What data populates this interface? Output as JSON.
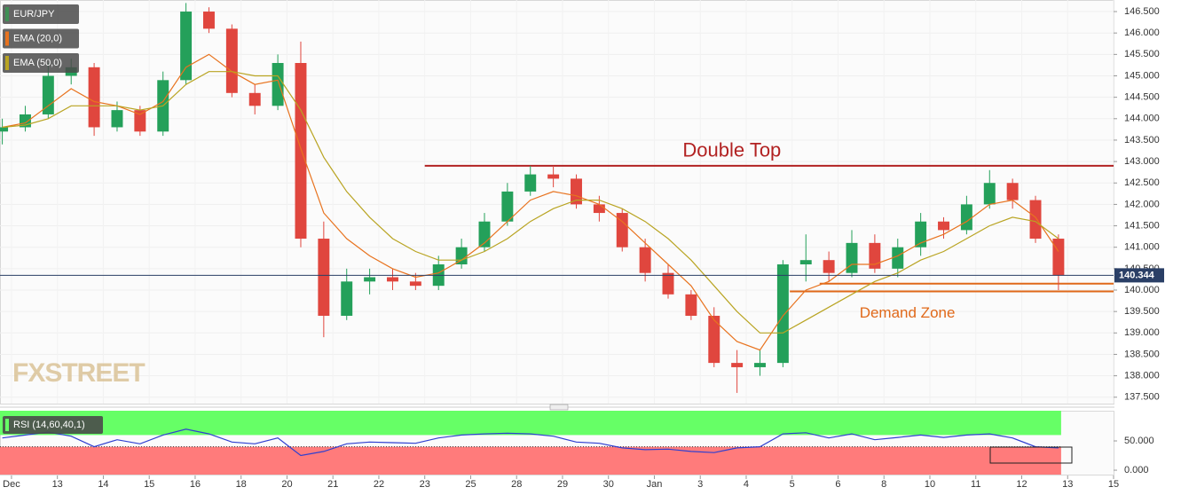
{
  "chart_data": [
    {
      "type": "candlestick",
      "watermark": "FXSTREET",
      "x": [
        -0.2,
        0.3,
        0.8,
        1.3,
        1.8,
        2.3,
        2.8,
        3.3,
        3.8,
        4.3,
        4.8,
        5.3,
        5.8,
        6.3,
        6.8,
        7.3,
        7.8,
        8.3,
        8.8,
        9.3,
        9.8,
        10.3,
        10.8,
        11.3,
        11.8,
        12.3,
        12.8,
        13.3,
        13.8,
        14.3,
        14.8,
        15.3,
        15.8,
        16.3,
        16.8,
        17.3,
        17.8,
        18.3,
        18.8,
        19.3,
        19.8,
        20.3,
        20.8,
        21.3,
        21.8,
        22.3,
        22.8
      ],
      "series": [
        {
          "name": "EUR/JPY",
          "color": "#3f8f55",
          "up_color": "#24a05a",
          "down_color": "#e0463e",
          "open": [
            143.7,
            143.8,
            144.1,
            145.0,
            145.2,
            143.8,
            144.2,
            143.7,
            144.9,
            146.5,
            146.1,
            144.6,
            144.3,
            145.3,
            141.2,
            139.4,
            140.2,
            140.3,
            140.2,
            140.1,
            140.6,
            141.0,
            141.6,
            142.3,
            142.7,
            142.6,
            142.0,
            141.8,
            141.0,
            140.4,
            139.9,
            139.4,
            138.3,
            138.2,
            138.3,
            140.6,
            140.7,
            140.4,
            141.1,
            140.5,
            141.0,
            141.6,
            141.4,
            142.0,
            142.5,
            142.1,
            141.2
          ],
          "high": [
            144.0,
            144.3,
            145.3,
            145.4,
            145.3,
            144.4,
            144.3,
            145.1,
            146.7,
            146.6,
            146.2,
            144.8,
            145.5,
            145.8,
            141.6,
            140.5,
            140.5,
            140.5,
            140.4,
            140.8,
            141.2,
            141.8,
            142.5,
            142.9,
            142.9,
            142.7,
            142.2,
            141.9,
            141.2,
            140.6,
            140.0,
            139.6,
            138.6,
            138.6,
            140.7,
            141.3,
            140.9,
            141.4,
            141.3,
            141.2,
            141.8,
            141.7,
            142.2,
            142.8,
            142.6,
            142.2,
            141.3
          ],
          "low": [
            143.4,
            143.7,
            144.0,
            144.8,
            143.6,
            143.7,
            143.6,
            143.6,
            144.8,
            146.0,
            144.5,
            144.1,
            144.2,
            141.0,
            138.9,
            139.3,
            139.9,
            140.0,
            140.0,
            140.0,
            140.5,
            140.9,
            141.5,
            142.2,
            142.4,
            141.9,
            141.6,
            140.9,
            140.2,
            139.8,
            139.3,
            138.2,
            137.6,
            138.0,
            138.2,
            140.2,
            140.2,
            140.3,
            140.4,
            140.3,
            140.8,
            141.2,
            141.3,
            141.9,
            141.9,
            141.1,
            140.0
          ],
          "close": [
            143.8,
            144.1,
            145.0,
            145.2,
            143.8,
            144.2,
            143.7,
            144.9,
            146.5,
            146.1,
            144.6,
            144.3,
            145.3,
            141.2,
            139.4,
            140.2,
            140.3,
            140.2,
            140.1,
            140.6,
            141.0,
            141.6,
            142.3,
            142.7,
            142.6,
            142.0,
            141.8,
            141.0,
            140.4,
            139.9,
            139.4,
            138.3,
            138.2,
            138.3,
            140.6,
            140.7,
            140.4,
            141.1,
            140.5,
            141.0,
            141.6,
            141.4,
            142.0,
            142.5,
            142.1,
            141.2,
            140.34
          ]
        },
        {
          "name": "EMA (20,0)",
          "color": "#e8731f",
          "values": [
            143.8,
            143.9,
            144.3,
            144.7,
            144.4,
            144.3,
            144.1,
            144.4,
            145.2,
            145.5,
            145.1,
            144.8,
            144.9,
            143.3,
            141.8,
            141.2,
            140.8,
            140.5,
            140.3,
            140.4,
            140.7,
            141.1,
            141.6,
            142.1,
            142.3,
            142.2,
            142.0,
            141.6,
            141.1,
            140.6,
            140.1,
            139.3,
            138.8,
            138.6,
            139.4,
            140.0,
            140.2,
            140.6,
            140.6,
            140.8,
            141.1,
            141.3,
            141.6,
            142.0,
            142.1,
            141.7,
            140.9
          ]
        },
        {
          "name": "EMA (50,0)",
          "color": "#b9a422",
          "values": [
            143.8,
            143.85,
            144.0,
            144.3,
            144.3,
            144.3,
            144.2,
            144.3,
            144.8,
            145.1,
            145.1,
            145.0,
            145.0,
            144.2,
            143.1,
            142.3,
            141.7,
            141.2,
            140.9,
            140.7,
            140.7,
            140.9,
            141.2,
            141.6,
            141.9,
            142.1,
            142.1,
            141.9,
            141.6,
            141.2,
            140.7,
            140.1,
            139.5,
            139.0,
            139.0,
            139.3,
            139.6,
            139.9,
            140.2,
            140.4,
            140.7,
            140.9,
            141.2,
            141.5,
            141.7,
            141.6,
            141.2
          ]
        }
      ],
      "last_price": 140.344,
      "resistance": {
        "label": "Double Top",
        "value": 142.9,
        "from": 9,
        "color": "#b22222"
      },
      "demand_zone": {
        "label": "Demand Zone",
        "values": [
          140.15,
          139.97
        ],
        "from": [
          17.6,
          16.95
        ],
        "color": "#e0691a"
      },
      "xlim": [
        -0.25,
        24
      ],
      "xticks": [
        {
          "value": 0,
          "label": "Dec"
        },
        {
          "value": 1,
          "label": "13"
        },
        {
          "value": 2,
          "label": "14"
        },
        {
          "value": 3,
          "label": "15"
        },
        {
          "value": 4,
          "label": "16"
        },
        {
          "value": 5,
          "label": "18"
        },
        {
          "value": 6,
          "label": "20"
        },
        {
          "value": 7,
          "label": "21"
        },
        {
          "value": 8,
          "label": "22"
        },
        {
          "value": 9,
          "label": "23"
        },
        {
          "value": 10,
          "label": "25"
        },
        {
          "value": 11,
          "label": "28"
        },
        {
          "value": 12,
          "label": "29"
        },
        {
          "value": 13,
          "label": "30"
        },
        {
          "value": 14,
          "label": "Jan"
        },
        {
          "value": 15,
          "label": "3"
        },
        {
          "value": 16,
          "label": "4"
        },
        {
          "value": 17,
          "label": "5"
        },
        {
          "value": 18,
          "label": "6"
        },
        {
          "value": 19,
          "label": "8"
        },
        {
          "value": 20,
          "label": "10"
        },
        {
          "value": 21,
          "label": "11"
        },
        {
          "value": 22,
          "label": "12"
        },
        {
          "value": 23,
          "label": "13"
        },
        {
          "value": 24,
          "label": "15"
        }
      ],
      "ylim": [
        137.35,
        146.77
      ],
      "yticks": [
        {
          "value": 137.5,
          "label": "137.500"
        },
        {
          "value": 138,
          "label": "138.000"
        },
        {
          "value": 138.5,
          "label": "138.500"
        },
        {
          "value": 139,
          "label": "139.000"
        },
        {
          "value": 139.5,
          "label": "139.500"
        },
        {
          "value": 140,
          "label": "140.000"
        },
        {
          "value": 140.5,
          "label": "140.500"
        },
        {
          "value": 141,
          "label": "141.000"
        },
        {
          "value": 141.5,
          "label": "141.500"
        },
        {
          "value": 142,
          "label": "142.000"
        },
        {
          "value": 142.5,
          "label": "142.500"
        },
        {
          "value": 143,
          "label": "143.000"
        },
        {
          "value": 143.5,
          "label": "143.500"
        },
        {
          "value": 144,
          "label": "144.000"
        },
        {
          "value": 144.5,
          "label": "144.500"
        },
        {
          "value": 145,
          "label": "145.000"
        },
        {
          "value": 145.5,
          "label": "145.500"
        },
        {
          "value": 146,
          "label": "146.000"
        },
        {
          "value": 146.5,
          "label": "146.500"
        }
      ],
      "grid": true
    },
    {
      "type": "line",
      "title": "RSI (14,60,40,1)",
      "x": [
        -0.2,
        0.3,
        0.8,
        1.3,
        1.8,
        2.3,
        2.8,
        3.3,
        3.8,
        4.3,
        4.8,
        5.3,
        5.8,
        6.3,
        6.8,
        7.3,
        7.8,
        8.3,
        8.8,
        9.3,
        9.8,
        10.3,
        10.8,
        11.3,
        11.8,
        12.3,
        12.8,
        13.3,
        13.8,
        14.3,
        14.8,
        15.3,
        15.8,
        16.3,
        16.8,
        17.3,
        17.8,
        18.3,
        18.8,
        19.3,
        19.8,
        20.3,
        20.8,
        21.3,
        21.8,
        22.3,
        22.8
      ],
      "series": [
        {
          "name": "RSI",
          "color": "#2f3fd0",
          "values": [
            55,
            60,
            65,
            58,
            40,
            52,
            45,
            60,
            70,
            62,
            48,
            45,
            55,
            25,
            32,
            45,
            48,
            47,
            46,
            55,
            60,
            62,
            63,
            62,
            58,
            48,
            46,
            38,
            35,
            36,
            32,
            30,
            38,
            40,
            62,
            64,
            55,
            62,
            52,
            56,
            60,
            56,
            60,
            62,
            55,
            40,
            38
          ]
        }
      ],
      "bands": {
        "upper": 60,
        "lower": 40,
        "upper_color": "#66ff66",
        "lower_color": "#ff7b7b"
      },
      "xlim": [
        -0.25,
        24
      ],
      "ylim": [
        -7.5,
        101.5
      ],
      "yticks": [
        {
          "value": 50,
          "label": "50.000"
        },
        {
          "value": 0,
          "label": "0.000"
        }
      ]
    }
  ]
}
